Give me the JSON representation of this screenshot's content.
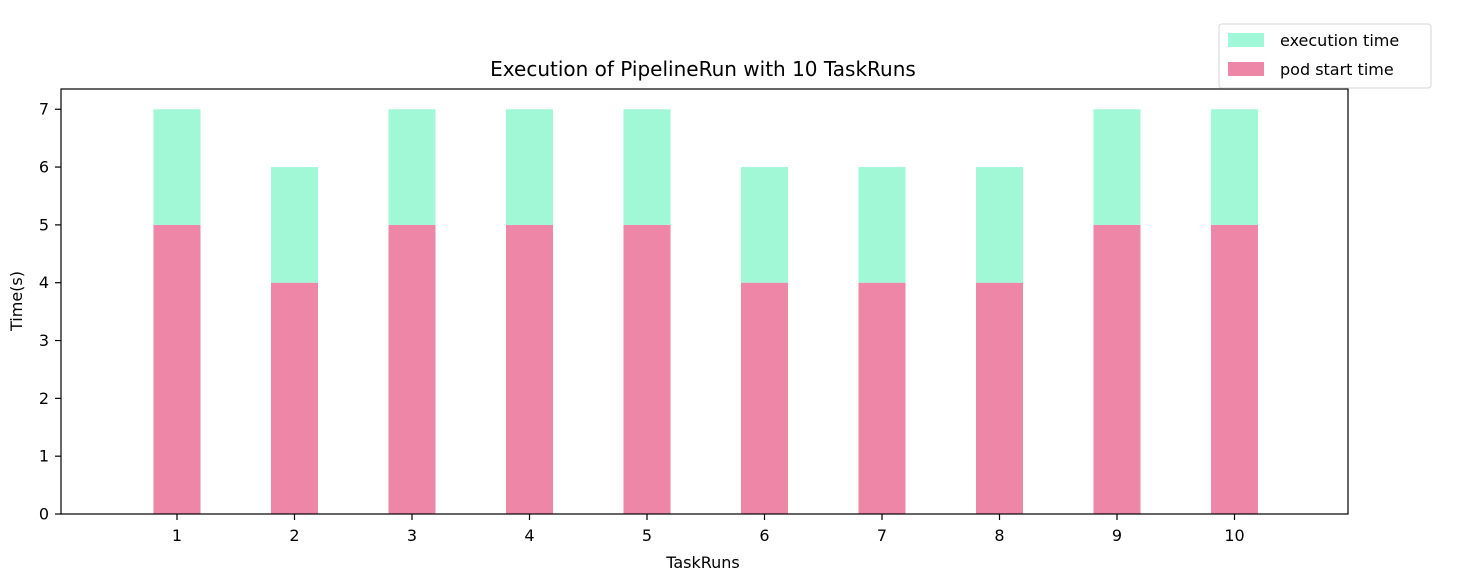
{
  "chart_data": {
    "type": "bar",
    "stacked": true,
    "title": "Execution of PipelineRun with 10 TaskRuns",
    "xlabel": "TaskRuns",
    "ylabel": "Time(s)",
    "categories": [
      "1",
      "2",
      "3",
      "4",
      "5",
      "6",
      "7",
      "8",
      "9",
      "10"
    ],
    "yticks": [
      "0",
      "1",
      "2",
      "3",
      "4",
      "5",
      "6",
      "7"
    ],
    "ylim": [
      0,
      7.35
    ],
    "grid": false,
    "legend_position": "top-right",
    "series": [
      {
        "name": "pod start time",
        "color": "#ee86a7",
        "values": [
          5,
          4,
          5,
          5,
          5,
          4,
          4,
          4,
          5,
          5
        ]
      },
      {
        "name": "execution time",
        "color": "#a0f8d6",
        "values": [
          2,
          2,
          2,
          2,
          2,
          2,
          2,
          2,
          2,
          2
        ]
      }
    ],
    "legend_order": [
      "execution time",
      "pod start time"
    ]
  }
}
